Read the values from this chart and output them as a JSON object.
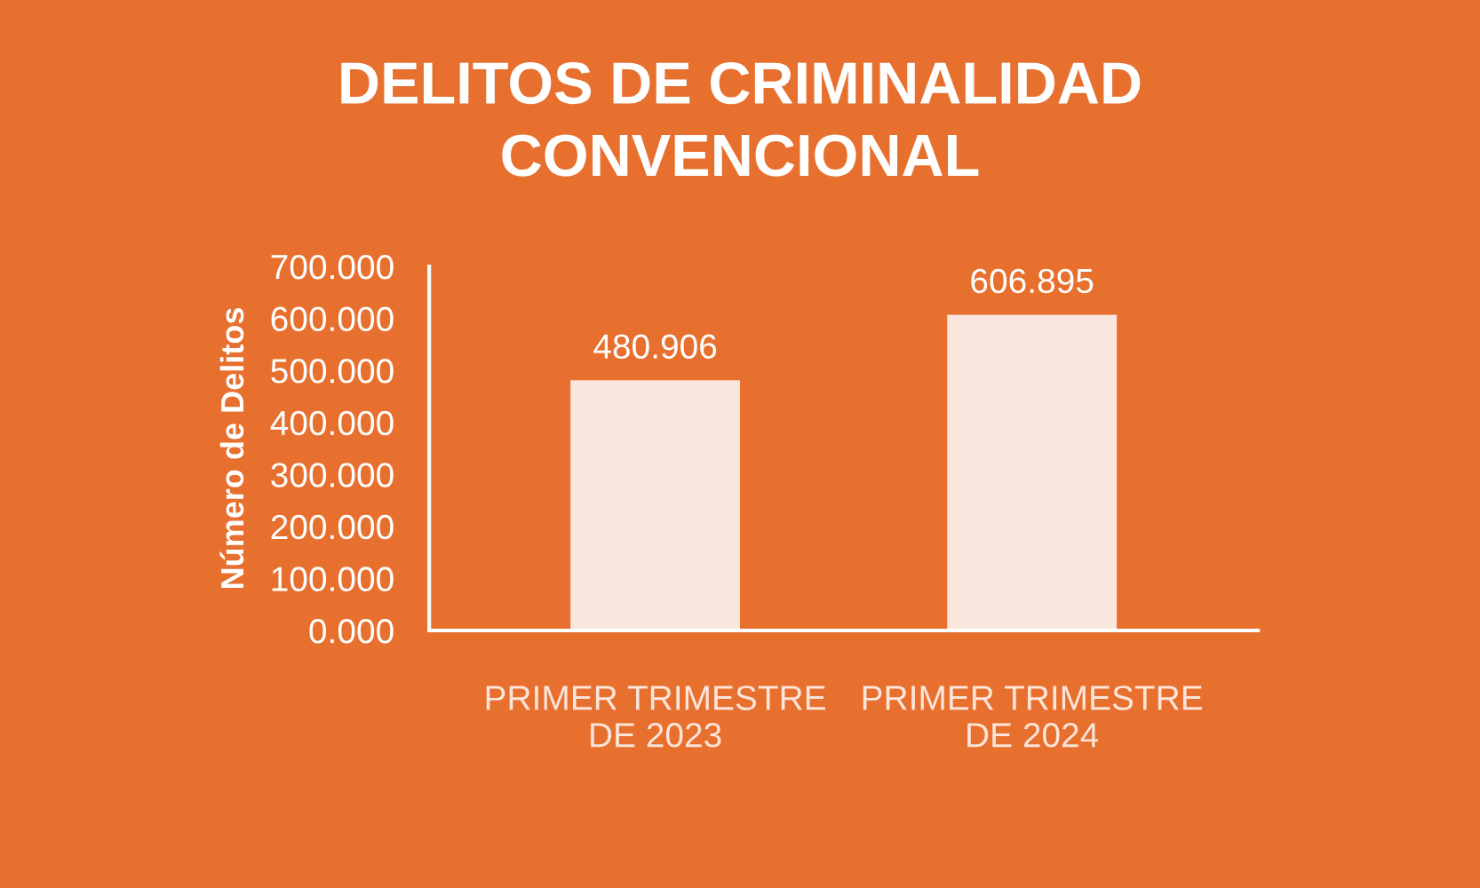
{
  "chart_data": {
    "type": "bar",
    "title": "DELITOS DE CRIMINALIDAD\nCONVENCIONAL",
    "ylabel": "Número de Delitos",
    "categories": [
      "PRIMER TRIMESTRE\nDE 2023",
      "PRIMER TRIMESTRE\nDE 2024"
    ],
    "values": [
      480.906,
      606.895
    ],
    "value_labels": [
      "480.906",
      "606.895"
    ],
    "color": "#fde5da",
    "ylim": [
      0,
      700
    ],
    "yticks": [
      {
        "value": 0,
        "label": "0.000"
      },
      {
        "value": 100,
        "label": "100.000"
      },
      {
        "value": 200,
        "label": "200.000"
      },
      {
        "value": 300,
        "label": "300.000"
      },
      {
        "value": 400,
        "label": "400.000"
      },
      {
        "value": 500,
        "label": "500.000"
      },
      {
        "value": 600,
        "label": "600.000"
      },
      {
        "value": 700,
        "label": "700.000"
      }
    ]
  }
}
